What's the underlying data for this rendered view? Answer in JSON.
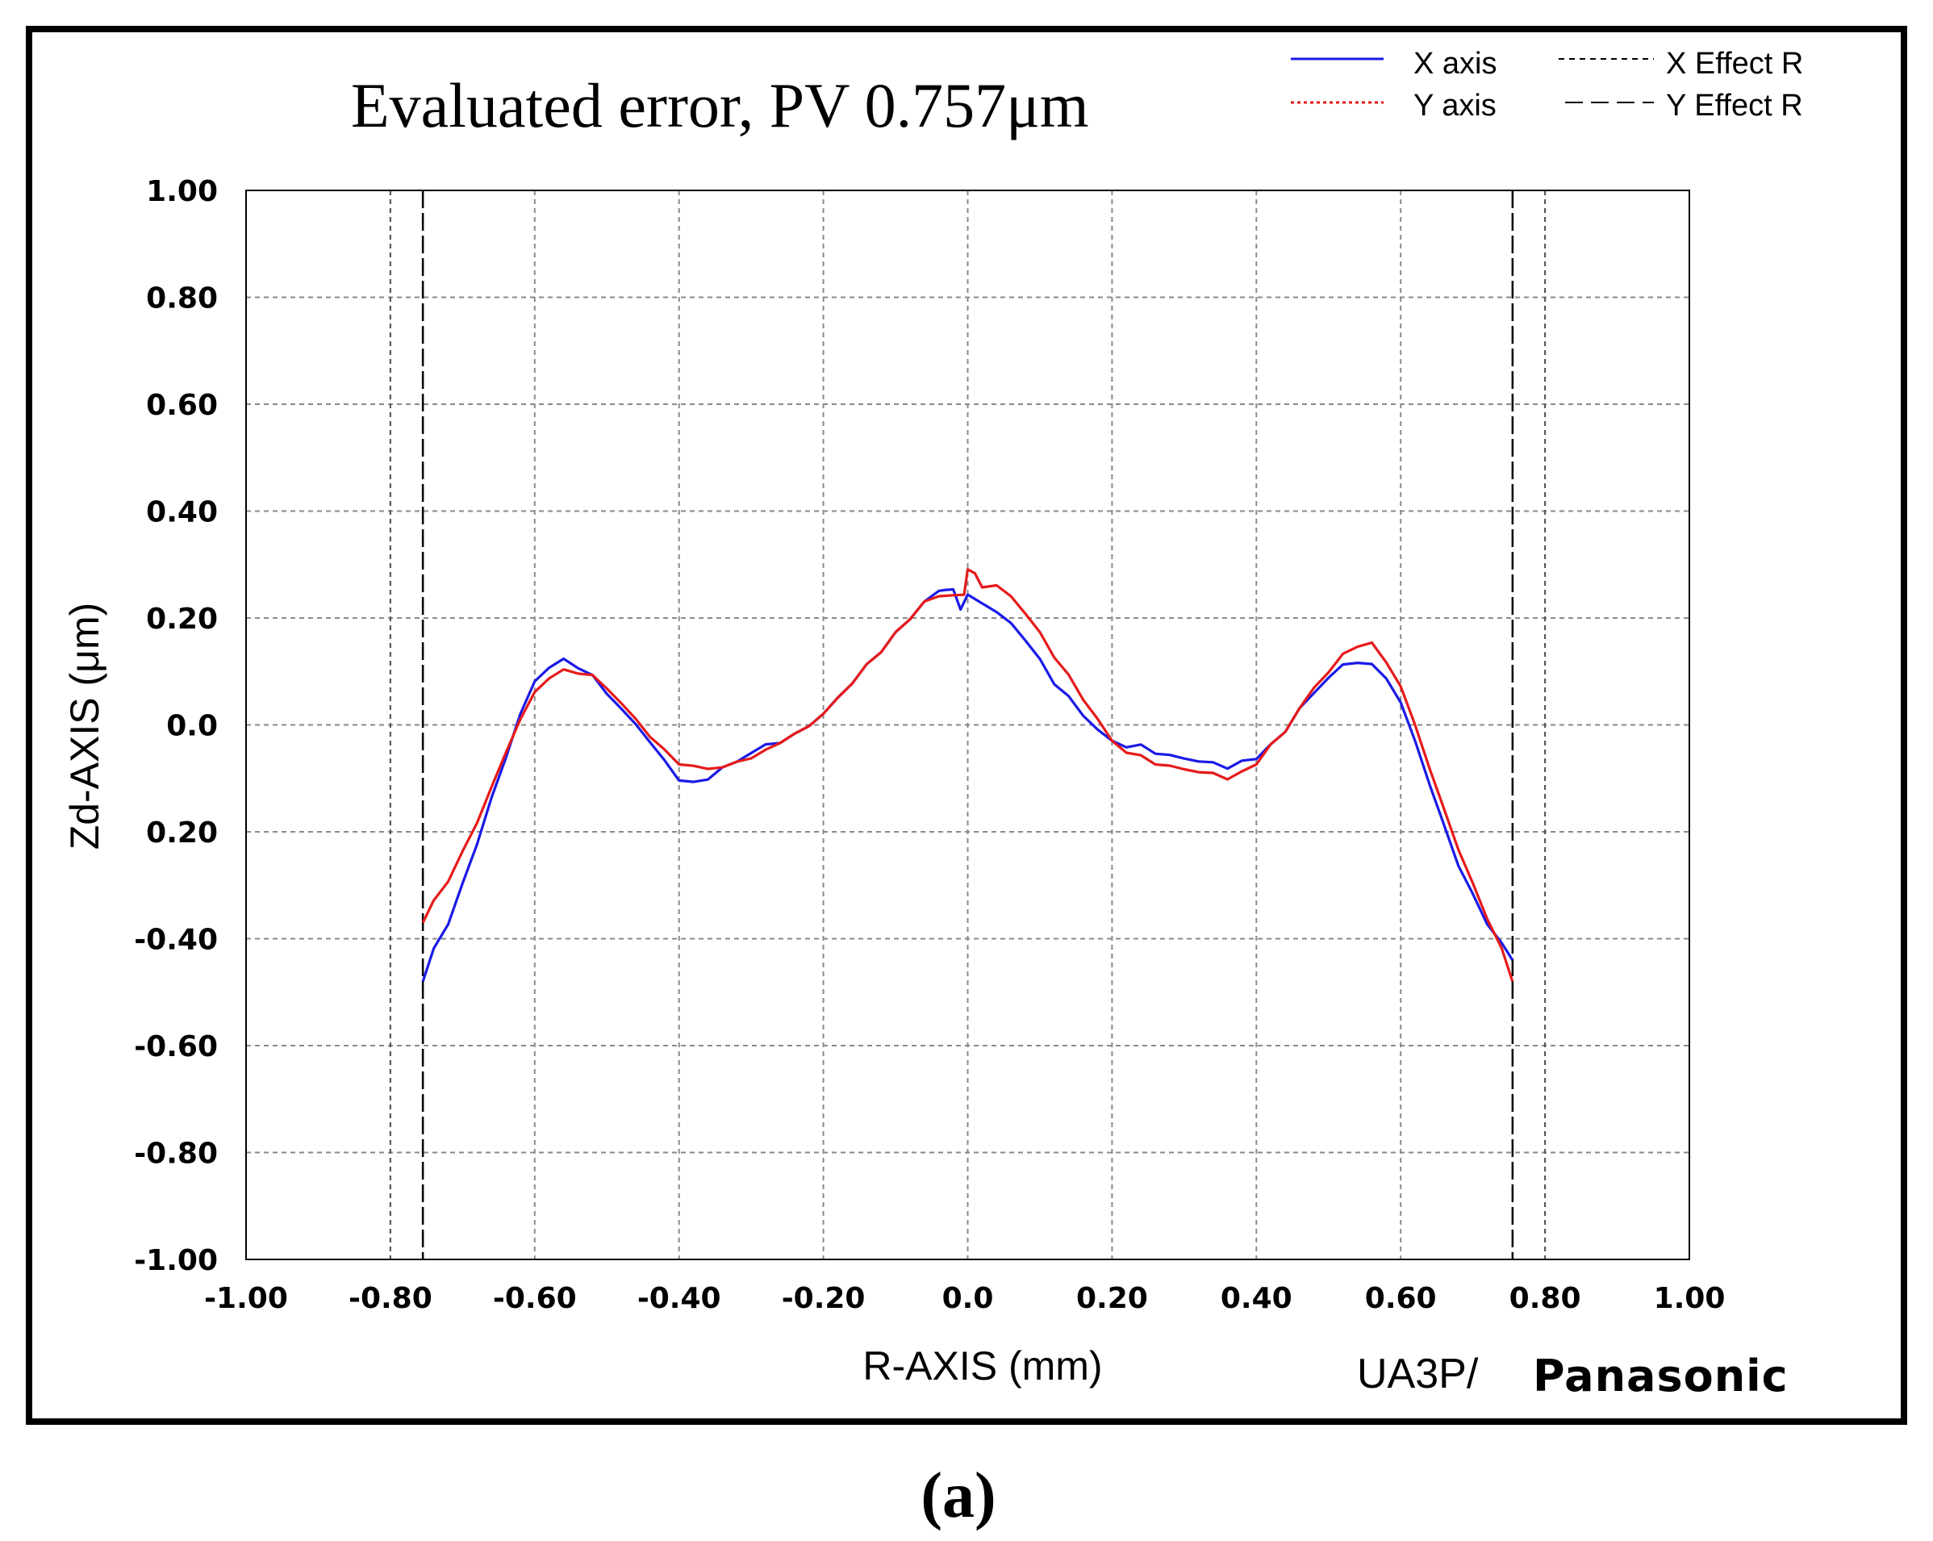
{
  "chart_data": {
    "type": "line",
    "title": "Evaluated error,   PV 0.757μm",
    "xlabel": "R-AXIS (mm)",
    "ylabel": "Zd-AXIS (μm)",
    "xlim": [
      -1.0,
      1.0
    ],
    "ylim": [
      -1.0,
      1.0
    ],
    "grid": true,
    "legend_position": "top-right",
    "x_tick_labels": [
      "-1.00",
      "-0.80",
      "-0.60",
      "-0.40",
      "-0.20",
      "0.0",
      "0.20",
      "0.40",
      "0.60",
      "0.80",
      "1.00"
    ],
    "y_tick_labels": [
      "1.00",
      "0.80",
      "0.60",
      "0.40",
      "0.20",
      "0.0",
      "0.20",
      "-0.40",
      "-0.60",
      "-0.80",
      "-1.00"
    ],
    "legend": [
      {
        "name": "X axis",
        "color": "#1a1ae6",
        "style": "solid"
      },
      {
        "name": "Y axis",
        "color": "#e61a1a",
        "style": "dotted"
      },
      {
        "name": "X Effect R",
        "color": "#000000",
        "style": "short-dash"
      },
      {
        "name": "Y Effect R",
        "color": "#000000",
        "style": "long-dash"
      }
    ],
    "effect_r_lines": {
      "x": [
        -0.8,
        0.8
      ],
      "y": [
        -0.755,
        0.755
      ]
    },
    "series": [
      {
        "name": "X axis",
        "color": "#1a1ae6",
        "x": [
          -0.755,
          -0.74,
          -0.72,
          -0.7,
          -0.68,
          -0.66,
          -0.64,
          -0.62,
          -0.6,
          -0.58,
          -0.56,
          -0.54,
          -0.52,
          -0.5,
          -0.48,
          -0.46,
          -0.44,
          -0.42,
          -0.4,
          -0.38,
          -0.36,
          -0.34,
          -0.32,
          -0.3,
          -0.28,
          -0.26,
          -0.24,
          -0.22,
          -0.2,
          -0.18,
          -0.16,
          -0.14,
          -0.12,
          -0.1,
          -0.08,
          -0.06,
          -0.04,
          -0.03,
          -0.02,
          -0.01,
          0.0,
          0.02,
          0.04,
          0.06,
          0.08,
          0.1,
          0.12,
          0.14,
          0.16,
          0.18,
          0.2,
          0.22,
          0.24,
          0.26,
          0.28,
          0.3,
          0.32,
          0.34,
          0.36,
          0.38,
          0.4,
          0.42,
          0.44,
          0.46,
          0.48,
          0.5,
          0.52,
          0.54,
          0.56,
          0.58,
          0.6,
          0.62,
          0.64,
          0.66,
          0.68,
          0.7,
          0.72,
          0.74,
          0.755
        ],
        "values": [
          -0.48,
          -0.42,
          -0.37,
          -0.3,
          -0.22,
          -0.14,
          -0.06,
          0.02,
          0.08,
          0.11,
          0.12,
          0.11,
          0.09,
          0.06,
          0.03,
          0.0,
          -0.03,
          -0.07,
          -0.1,
          -0.11,
          -0.1,
          -0.08,
          -0.07,
          -0.05,
          -0.04,
          -0.03,
          -0.02,
          0.0,
          0.02,
          0.05,
          0.08,
          0.11,
          0.14,
          0.17,
          0.2,
          0.23,
          0.25,
          0.255,
          0.25,
          0.22,
          0.24,
          0.23,
          0.21,
          0.19,
          0.16,
          0.12,
          0.08,
          0.05,
          0.02,
          -0.01,
          -0.03,
          -0.04,
          -0.04,
          -0.05,
          -0.06,
          -0.06,
          -0.07,
          -0.07,
          -0.08,
          -0.07,
          -0.06,
          -0.04,
          -0.01,
          0.03,
          0.06,
          0.09,
          0.11,
          0.12,
          0.11,
          0.09,
          0.04,
          -0.03,
          -0.11,
          -0.19,
          -0.26,
          -0.32,
          -0.37,
          -0.41,
          -0.44
        ]
      },
      {
        "name": "Y axis",
        "color": "#e61a1a",
        "x": [
          -0.755,
          -0.74,
          -0.72,
          -0.7,
          -0.68,
          -0.66,
          -0.64,
          -0.62,
          -0.6,
          -0.58,
          -0.56,
          -0.54,
          -0.52,
          -0.5,
          -0.48,
          -0.46,
          -0.44,
          -0.42,
          -0.4,
          -0.38,
          -0.36,
          -0.34,
          -0.32,
          -0.3,
          -0.28,
          -0.26,
          -0.24,
          -0.22,
          -0.2,
          -0.18,
          -0.16,
          -0.14,
          -0.12,
          -0.1,
          -0.08,
          -0.06,
          -0.04,
          -0.02,
          -0.005,
          0.0,
          0.01,
          0.02,
          0.04,
          0.06,
          0.08,
          0.1,
          0.12,
          0.14,
          0.16,
          0.18,
          0.2,
          0.22,
          0.24,
          0.26,
          0.28,
          0.3,
          0.32,
          0.34,
          0.36,
          0.38,
          0.4,
          0.42,
          0.44,
          0.46,
          0.48,
          0.5,
          0.52,
          0.54,
          0.56,
          0.58,
          0.6,
          0.62,
          0.64,
          0.66,
          0.68,
          0.7,
          0.72,
          0.74,
          0.755
        ],
        "values": [
          -0.37,
          -0.33,
          -0.29,
          -0.24,
          -0.18,
          -0.12,
          -0.05,
          0.01,
          0.06,
          0.09,
          0.1,
          0.1,
          0.09,
          0.07,
          0.04,
          0.01,
          -0.02,
          -0.05,
          -0.07,
          -0.08,
          -0.08,
          -0.08,
          -0.07,
          -0.06,
          -0.05,
          -0.03,
          -0.02,
          0.0,
          0.02,
          0.05,
          0.08,
          0.11,
          0.14,
          0.17,
          0.2,
          0.23,
          0.24,
          0.245,
          0.24,
          0.295,
          0.28,
          0.26,
          0.26,
          0.24,
          0.21,
          0.17,
          0.13,
          0.09,
          0.05,
          0.01,
          -0.03,
          -0.05,
          -0.06,
          -0.07,
          -0.08,
          -0.08,
          -0.09,
          -0.09,
          -0.1,
          -0.09,
          -0.07,
          -0.04,
          -0.01,
          0.03,
          0.07,
          0.1,
          0.13,
          0.15,
          0.15,
          0.12,
          0.07,
          0.0,
          -0.08,
          -0.16,
          -0.23,
          -0.3,
          -0.36,
          -0.42,
          -0.48
        ]
      }
    ]
  },
  "brand": {
    "instrument": "UA3P/",
    "logo_text": "Panasonic"
  },
  "caption": "(a)"
}
